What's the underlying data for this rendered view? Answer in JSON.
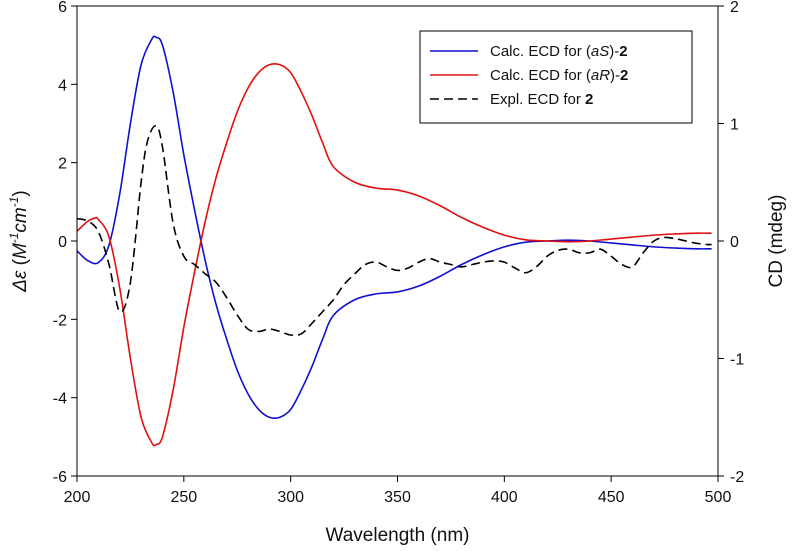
{
  "chart_data": {
    "type": "line",
    "xlabel": "Wavelength (nm)",
    "ylabel_left": {
      "symbol": "Δε",
      "open": " (",
      "unit1": "M",
      "sup1": "-1",
      "unit2": "cm",
      "sup2": "-1",
      "close": ")"
    },
    "ylabel_right": "CD (mdeg)",
    "xlim": [
      200,
      500
    ],
    "ylim_left": [
      -6,
      6
    ],
    "ylim_right": [
      -2,
      2
    ],
    "x_ticks": [
      "200",
      "250",
      "300",
      "350",
      "400",
      "450",
      "500"
    ],
    "y_left_ticks": [
      "-6",
      "-4",
      "-2",
      "0",
      "2",
      "4",
      "6"
    ],
    "y_right_ticks": [
      "-2",
      "-1",
      "0",
      "1",
      "2"
    ],
    "grid": false,
    "legend_position": "top-right",
    "series": [
      {
        "label_parts": [
          {
            "text": "Calc. ECD for (",
            "style": "normal"
          },
          {
            "text": "aS",
            "style": "italic"
          },
          {
            "text": ")-",
            "style": "normal"
          },
          {
            "text": "2",
            "style": "bold"
          }
        ],
        "color": "#1010d0",
        "dash": "solid",
        "axis": "left",
        "x": [
          200,
          205,
          210,
          215,
          220,
          225,
          230,
          235,
          237,
          240,
          245,
          250,
          255,
          260,
          265,
          270,
          275,
          280,
          285,
          290,
          295,
          300,
          305,
          310,
          315,
          320,
          330,
          340,
          350,
          360,
          370,
          380,
          390,
          400,
          410,
          420,
          430,
          440,
          450,
          460,
          470,
          480,
          490,
          497
        ],
        "y": [
          -0.25,
          -0.5,
          -0.55,
          -0.1,
          1.2,
          3.0,
          4.5,
          5.15,
          5.2,
          5.0,
          3.8,
          2.2,
          0.8,
          -0.5,
          -1.6,
          -2.5,
          -3.3,
          -3.9,
          -4.3,
          -4.5,
          -4.5,
          -4.3,
          -3.8,
          -3.2,
          -2.5,
          -1.9,
          -1.5,
          -1.35,
          -1.3,
          -1.15,
          -0.9,
          -0.6,
          -0.35,
          -0.15,
          -0.03,
          0.0,
          0.02,
          0.0,
          -0.05,
          -0.1,
          -0.15,
          -0.18,
          -0.2,
          -0.2
        ]
      },
      {
        "label_parts": [
          {
            "text": "Calc. ECD for (",
            "style": "normal"
          },
          {
            "text": "aR",
            "style": "italic"
          },
          {
            "text": ")-",
            "style": "normal"
          },
          {
            "text": "2",
            "style": "bold"
          }
        ],
        "color": "#e01010",
        "dash": "solid",
        "axis": "left",
        "x": [
          200,
          205,
          208,
          210,
          215,
          220,
          225,
          230,
          235,
          237,
          240,
          245,
          250,
          255,
          260,
          265,
          270,
          275,
          280,
          285,
          290,
          295,
          300,
          305,
          310,
          315,
          320,
          330,
          340,
          350,
          360,
          370,
          380,
          390,
          400,
          410,
          420,
          430,
          440,
          450,
          460,
          470,
          480,
          490,
          497
        ],
        "y": [
          0.25,
          0.5,
          0.58,
          0.55,
          0.1,
          -1.2,
          -3.0,
          -4.5,
          -5.15,
          -5.2,
          -5.0,
          -3.8,
          -2.2,
          -0.8,
          0.5,
          1.6,
          2.5,
          3.3,
          3.9,
          4.3,
          4.5,
          4.5,
          4.3,
          3.8,
          3.2,
          2.5,
          1.9,
          1.5,
          1.35,
          1.3,
          1.15,
          0.9,
          0.6,
          0.35,
          0.15,
          0.03,
          0.0,
          -0.02,
          0.0,
          0.05,
          0.1,
          0.15,
          0.18,
          0.2,
          0.2
        ]
      },
      {
        "label_parts": [
          {
            "text": "Expl. ECD for ",
            "style": "normal"
          },
          {
            "text": "2",
            "style": "bold"
          }
        ],
        "color": "#000000",
        "dash": "dashed",
        "axis": "right",
        "x": [
          200,
          205,
          210,
          215,
          220,
          225,
          230,
          233,
          237,
          240,
          245,
          250,
          255,
          260,
          265,
          270,
          275,
          280,
          285,
          290,
          295,
          300,
          305,
          310,
          315,
          320,
          325,
          330,
          335,
          340,
          345,
          350,
          355,
          360,
          365,
          370,
          375,
          380,
          385,
          390,
          395,
          400,
          405,
          410,
          415,
          420,
          425,
          430,
          435,
          440,
          445,
          450,
          455,
          460,
          465,
          470,
          475,
          480,
          485,
          490,
          495,
          497
        ],
        "y": [
          0.19,
          0.17,
          0.08,
          -0.2,
          -0.6,
          -0.35,
          0.5,
          0.85,
          0.98,
          0.8,
          0.15,
          -0.13,
          -0.2,
          -0.28,
          -0.35,
          -0.48,
          -0.63,
          -0.75,
          -0.77,
          -0.75,
          -0.77,
          -0.8,
          -0.79,
          -0.7,
          -0.6,
          -0.5,
          -0.37,
          -0.28,
          -0.2,
          -0.18,
          -0.22,
          -0.25,
          -0.23,
          -0.18,
          -0.15,
          -0.18,
          -0.2,
          -0.22,
          -0.2,
          -0.18,
          -0.17,
          -0.18,
          -0.23,
          -0.27,
          -0.22,
          -0.13,
          -0.08,
          -0.07,
          -0.1,
          -0.1,
          -0.07,
          -0.13,
          -0.2,
          -0.22,
          -0.1,
          0.0,
          0.03,
          0.02,
          0.0,
          -0.02,
          -0.03,
          -0.03
        ]
      }
    ]
  }
}
